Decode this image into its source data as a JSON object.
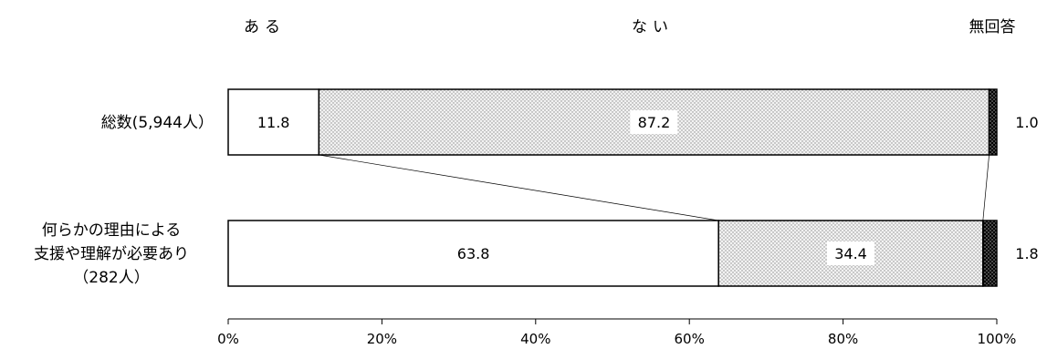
{
  "chart_data": {
    "type": "bar",
    "stacked": true,
    "orientation": "horizontal",
    "legend_placement": "top",
    "segments": [
      {
        "name": "ある",
        "fill": "#ffffff",
        "pattern": "none"
      },
      {
        "name": "ない",
        "fill": "#e8e8e8",
        "pattern": "dots-light"
      },
      {
        "name": "無回答",
        "fill": "#000000",
        "pattern": "dots-dark"
      }
    ],
    "rows": [
      {
        "label_lines": [
          "総数(5,944人）"
        ],
        "values": [
          11.8,
          87.2,
          1.0
        ],
        "value_labels": [
          "11.8",
          "87.2",
          "1.0"
        ]
      },
      {
        "label_lines": [
          "何らかの理由による",
          "支援や理解が必要あり",
          "（282人）"
        ],
        "values": [
          63.8,
          34.4,
          1.8
        ],
        "value_labels": [
          "63.8",
          "34.4",
          "1.8"
        ]
      }
    ],
    "x_ticks": [
      "0%",
      "20%",
      "40%",
      "60%",
      "80%",
      "100%"
    ],
    "xlim": [
      0,
      100
    ],
    "connector_lines": true,
    "grid": false
  }
}
